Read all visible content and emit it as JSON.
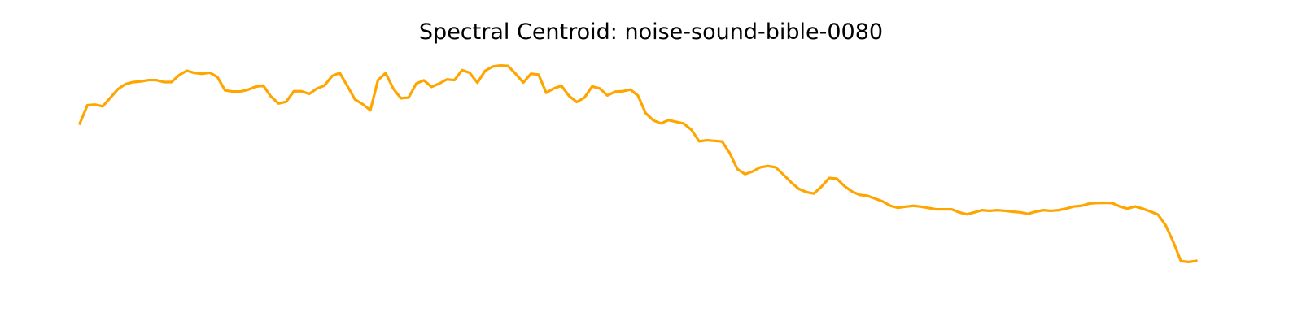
{
  "chart_data": {
    "type": "line",
    "title": "Spectral Centroid: noise-sound-bible-0080",
    "xlabel": "",
    "ylabel": "",
    "axes_visible": false,
    "grid": false,
    "ylim": [
      0,
      100
    ],
    "color": "#FFA500",
    "series": [
      {
        "values": [
          73.2,
          81.6,
          81.9,
          81.1,
          85.0,
          89.0,
          91.3,
          92.2,
          92.5,
          93.1,
          93.1,
          92.2,
          92.2,
          95.4,
          97.4,
          96.4,
          96.0,
          96.5,
          94.5,
          88.4,
          87.9,
          87.9,
          88.7,
          90.1,
          90.6,
          85.6,
          82.4,
          83.2,
          88.0,
          88.0,
          86.8,
          89.2,
          90.6,
          95.0,
          96.4,
          90.4,
          84.2,
          82.1,
          79.3,
          93.1,
          96.3,
          89.2,
          84.8,
          85.1,
          91.5,
          93.0,
          90.0,
          91.5,
          93.4,
          93.1,
          97.7,
          96.4,
          91.9,
          97.3,
          99.3,
          99.8,
          99.6,
          96.0,
          92.0,
          96.0,
          95.6,
          87.3,
          89.3,
          90.5,
          85.8,
          83.1,
          85.1,
          90.2,
          89.3,
          86.1,
          87.8,
          88.0,
          88.8,
          86.0,
          78.0,
          74.7,
          73.3,
          74.8,
          74.0,
          73.2,
          70.3,
          65.1,
          65.6,
          65.3,
          65.0,
          59.7,
          52.4,
          50.1,
          51.3,
          53.2,
          53.8,
          53.2,
          49.9,
          46.4,
          43.4,
          41.9,
          41.2,
          44.4,
          48.3,
          48.0,
          44.6,
          42.1,
          40.6,
          40.2,
          38.9,
          37.6,
          35.6,
          34.7,
          35.2,
          35.6,
          35.2,
          34.6,
          34.0,
          34.0,
          34.0,
          32.6,
          31.7,
          32.6,
          33.6,
          33.3,
          33.6,
          33.3,
          32.9,
          32.6,
          31.9,
          32.9,
          33.6,
          33.3,
          33.6,
          34.3,
          35.3,
          35.6,
          36.6,
          36.9,
          37.0,
          36.9,
          35.3,
          34.3,
          35.3,
          34.3,
          33.0,
          31.6,
          26.7,
          19.1,
          10.3,
          9.9,
          10.4
        ]
      }
    ]
  }
}
